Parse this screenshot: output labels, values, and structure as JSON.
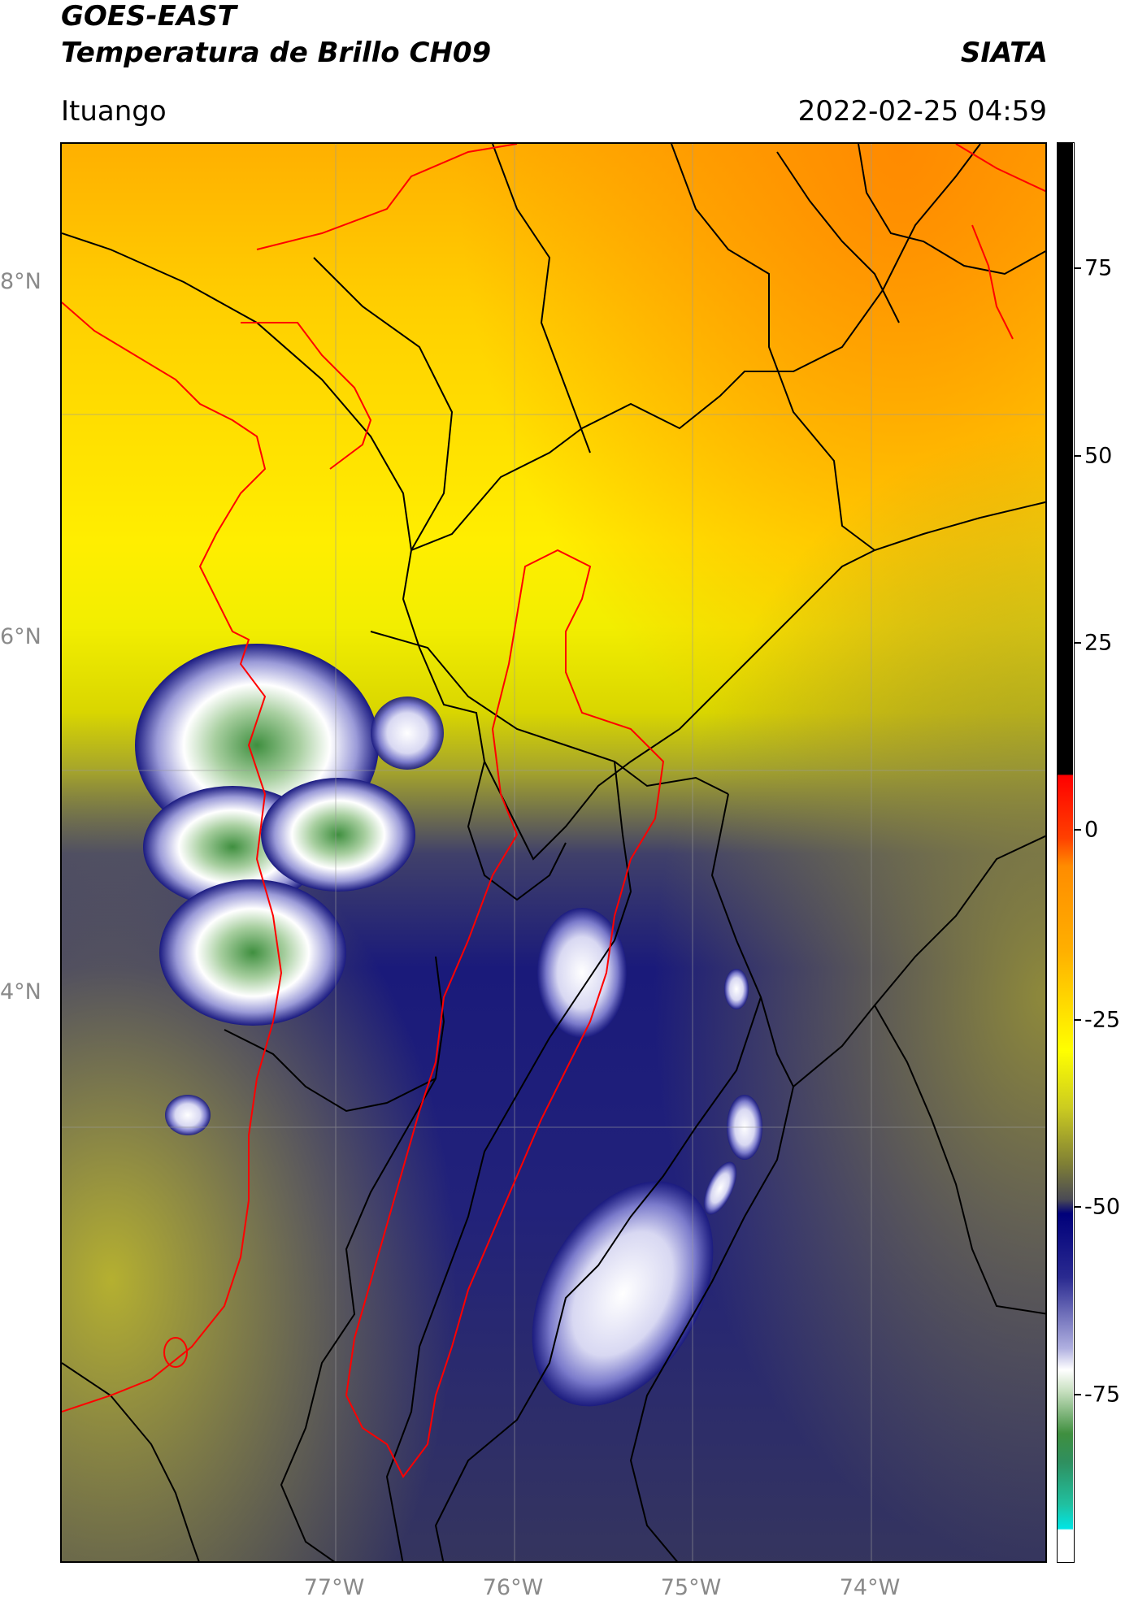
{
  "header": {
    "title_line1": "GOES-EAST",
    "title_line2": "Temperatura de Brillo CH09",
    "brand": "SIATA",
    "location": "Ituango",
    "datetime": "2022-02-25 04:59"
  },
  "map": {
    "lat_labels": [
      "8°N",
      "6°N",
      "4°N"
    ],
    "lon_labels": [
      "77°W",
      "76°W",
      "75°W",
      "74°W"
    ],
    "lat_range": [
      1.2,
      9.5
    ],
    "lon_range": [
      -78.55,
      -73.05
    ],
    "gridlines": true
  },
  "colorbar": {
    "ticks": [
      "75",
      "50",
      "25",
      "0",
      "-25",
      "-50",
      "-75"
    ],
    "range": [
      -90,
      90
    ],
    "colors": {
      "black": "#000000",
      "red": "#ff1e00",
      "orange": "#ff9b00",
      "yellow": "#ffff00",
      "olive": "#7f7f35",
      "navy": "#00007a",
      "white": "#ffffff",
      "green": "#2f8f2f",
      "cyan": "#00e5e5"
    }
  },
  "overlays": {
    "region_outline_color": "#ff0000",
    "borders_color": "#000000"
  }
}
